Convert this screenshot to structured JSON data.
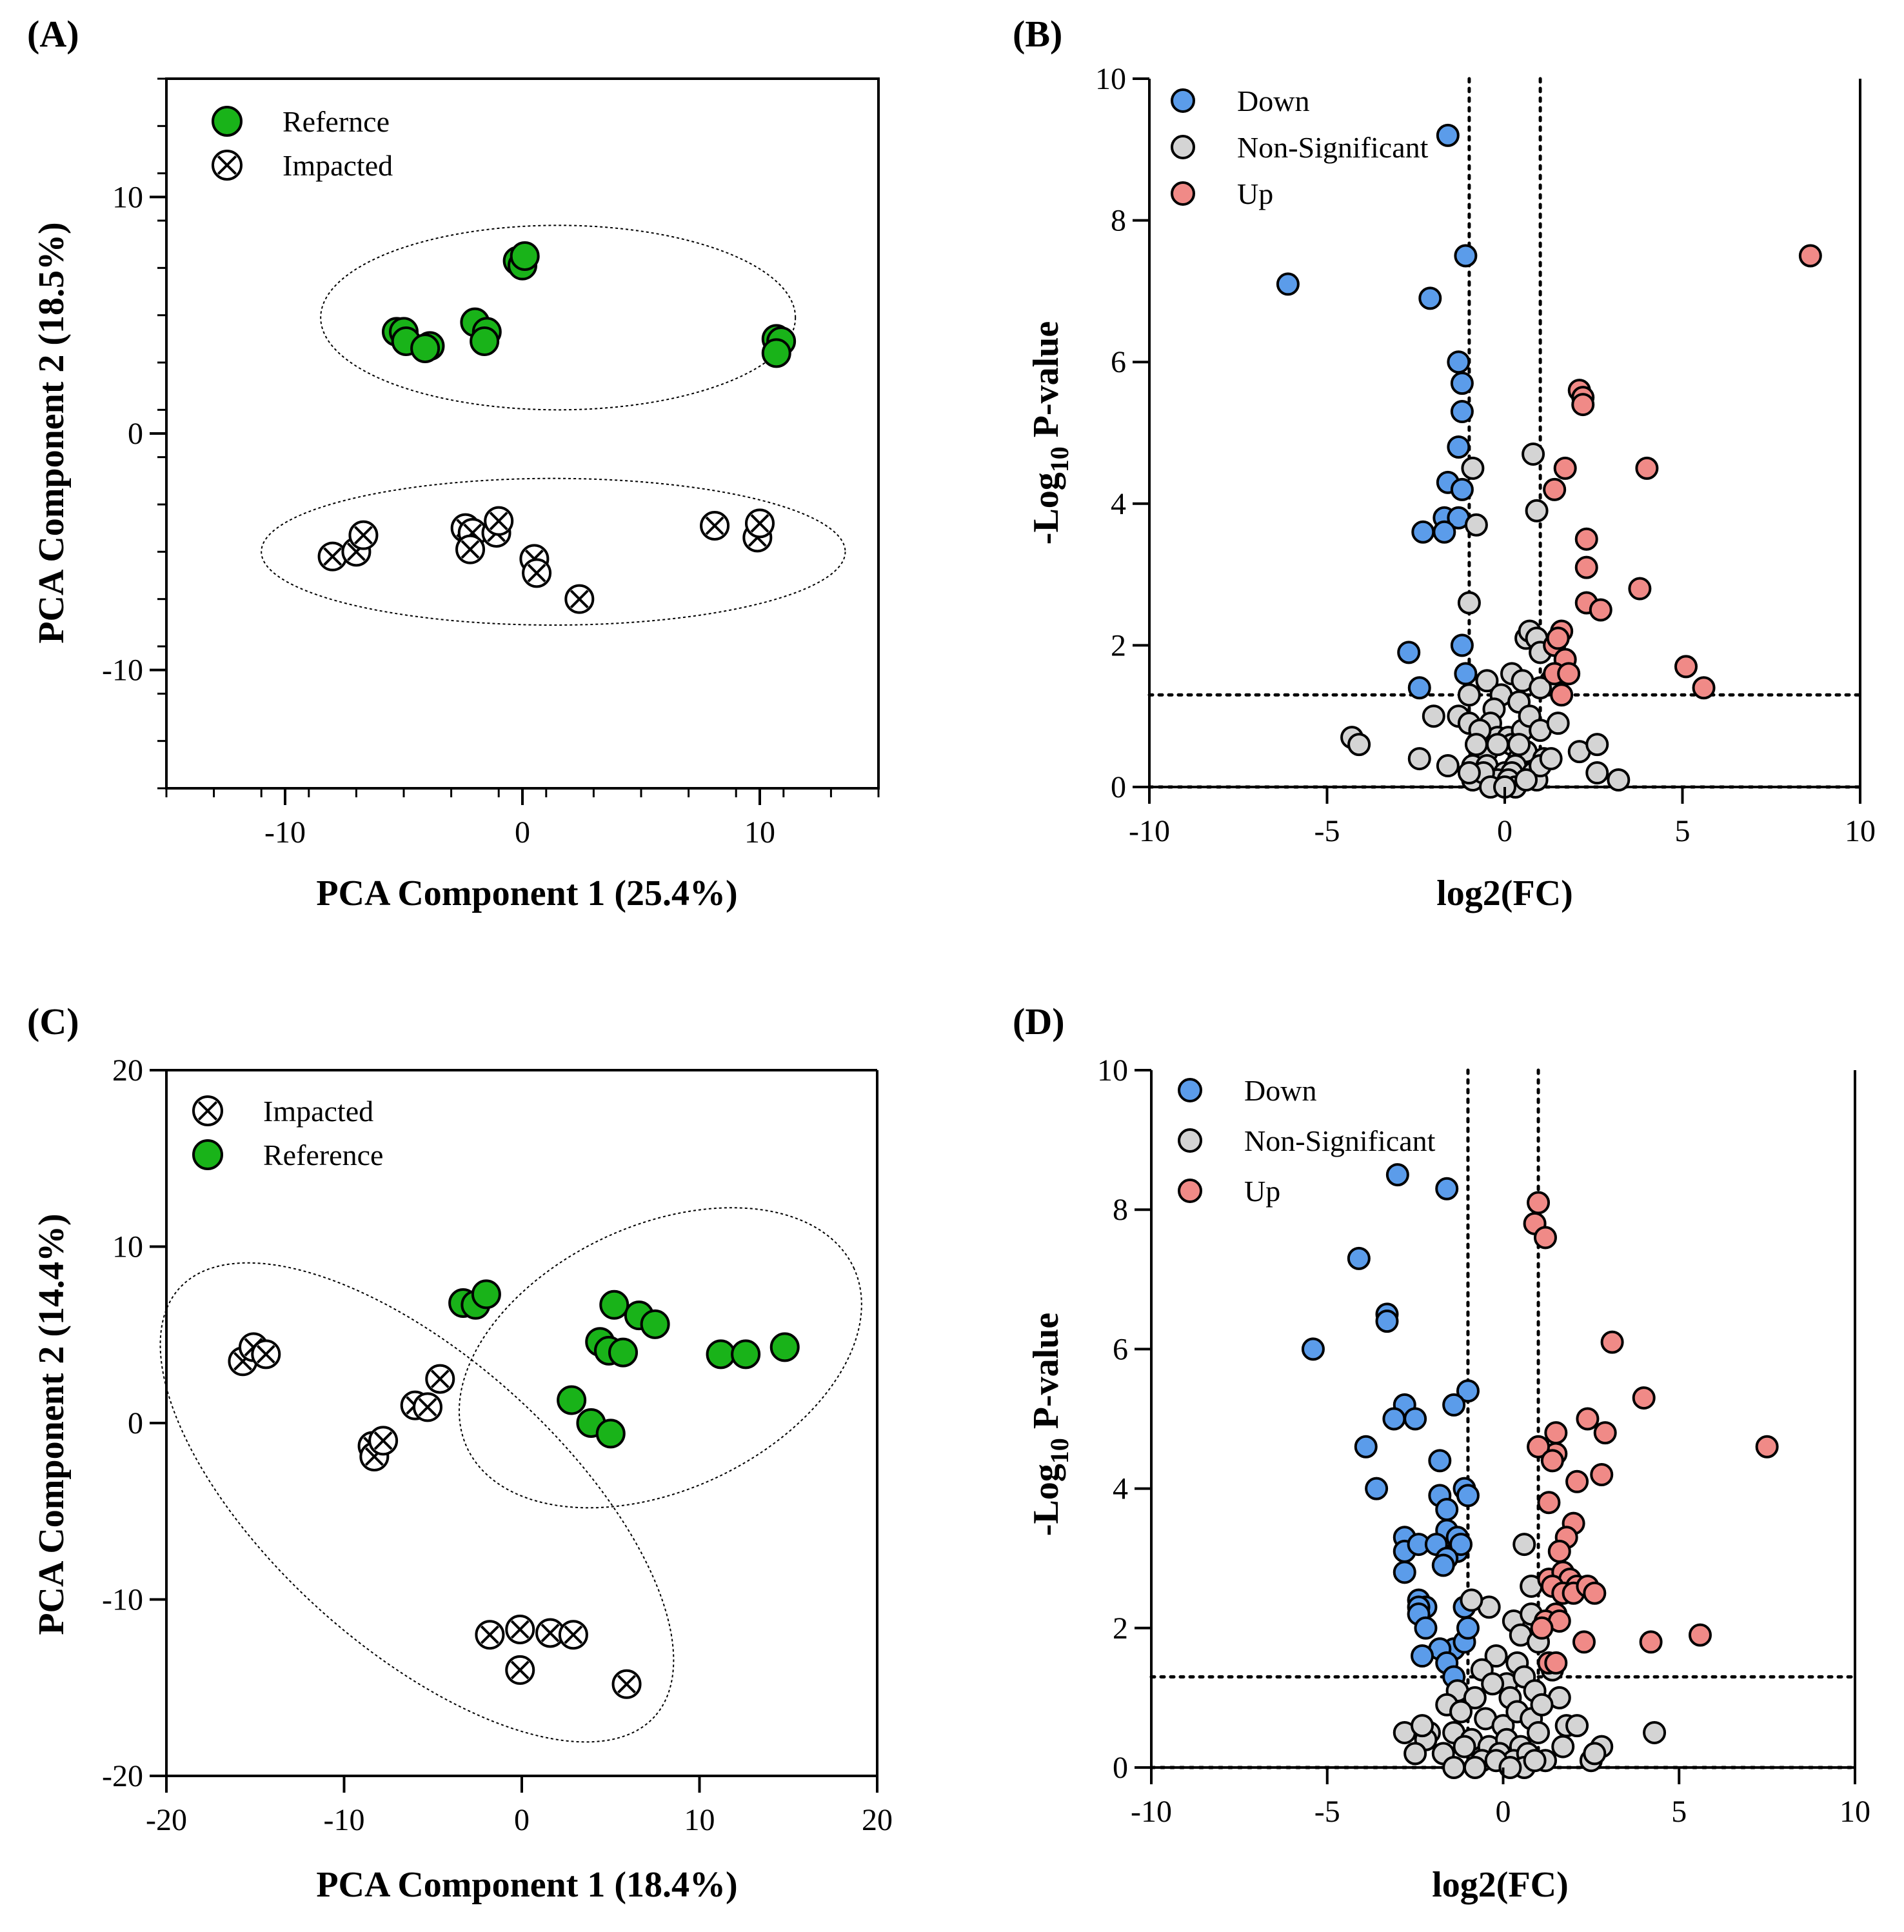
{
  "colors": {
    "reference": "#19b319",
    "down": "#5b9cea",
    "non_significant": "#d4d4d4",
    "up": "#f08a87",
    "stroke": "#000000"
  },
  "chart_data": [
    {
      "panel": "(A)",
      "type": "scatter",
      "xlabel": "PCA Component 1 (25.4%)",
      "ylabel": "PCA Component 2 (18.5%)",
      "xlim": [
        -15,
        15
      ],
      "ylim": [
        -15,
        15
      ],
      "xticks": [
        -10,
        0,
        10
      ],
      "yticks": [
        -10,
        0,
        10
      ],
      "legend_position": "top-left",
      "series": [
        {
          "name": "Refernce",
          "marker": "filled",
          "color": "#19b319",
          "x": [
            -5.3,
            -5.0,
            -4.9,
            -3.9,
            -4.1,
            -2.0,
            -1.5,
            -1.6,
            -0.2,
            0.0,
            0.1,
            10.7,
            10.9,
            10.7
          ],
          "y": [
            4.3,
            4.3,
            3.9,
            3.7,
            3.6,
            4.7,
            4.3,
            3.9,
            7.3,
            7.1,
            7.5,
            4.0,
            3.9,
            3.4
          ]
        },
        {
          "name": "Impacted",
          "marker": "cross",
          "color": "#ffffff",
          "x": [
            -8.0,
            -7.0,
            -6.7,
            -2.4,
            -2.1,
            -2.2,
            -1.1,
            -1.0,
            0.5,
            0.6,
            2.4,
            8.1,
            9.9,
            10.0
          ],
          "y": [
            -5.2,
            -5.0,
            -4.3,
            -4.0,
            -4.2,
            -4.9,
            -4.2,
            -3.7,
            -5.3,
            -5.9,
            -7.0,
            -3.9,
            -4.4,
            -3.8
          ]
        }
      ],
      "ellipses": [
        {
          "group": "Refernce",
          "cx": 1.5,
          "cy": 4.9,
          "rx": 10.0,
          "ry": 3.9
        },
        {
          "group": "Impacted",
          "cx": 1.3,
          "cy": -5.0,
          "rx": 12.3,
          "ry": 3.1
        }
      ]
    },
    {
      "panel": "(B)",
      "type": "scatter",
      "xlabel": "log2(FC)",
      "ylabel_parts": [
        "-Log",
        "10",
        " P-value"
      ],
      "xlim": [
        -10,
        10
      ],
      "ylim": [
        0,
        10
      ],
      "xticks": [
        -10,
        -5,
        0,
        5,
        10
      ],
      "yticks": [
        0,
        2,
        4,
        6,
        8,
        10
      ],
      "thresholds": {
        "x": [
          -1,
          1
        ],
        "y": 1.3
      },
      "legend_position": "top-left",
      "series": [
        {
          "name": "Down",
          "color": "#5b9cea",
          "x": [
            -1.6,
            -6.1,
            -2.1,
            -1.1,
            -1.3,
            -1.2,
            -1.2,
            -1.3,
            -1.6,
            -1.2,
            -1.7,
            -1.3,
            -1.7,
            -2.3,
            -2.7,
            -1.2,
            -2.4,
            -1.1
          ],
          "y": [
            9.2,
            7.1,
            6.9,
            7.5,
            6.0,
            5.7,
            5.3,
            4.8,
            4.3,
            4.2,
            3.8,
            3.8,
            3.6,
            3.6,
            1.9,
            2.0,
            1.4,
            1.6
          ]
        },
        {
          "name": "Non-Significant",
          "color": "#d4d4d4",
          "x": [
            -0.9,
            -0.8,
            0.8,
            0.9,
            -1.0,
            0.6,
            0.7,
            0.9,
            1.0,
            0.2,
            -0.5,
            -0.1,
            0.5,
            1.3,
            -1.0,
            0.4,
            1.0,
            -0.3,
            -1.3,
            -1.0,
            -0.4,
            -0.2,
            -0.7,
            0.1,
            0.5,
            0.7,
            1.0,
            1.5,
            -0.7,
            -0.5,
            0.2,
            0.4,
            0.6,
            1.1,
            -4.3,
            -4.1,
            -1.6,
            -0.9,
            -0.5,
            0.0,
            0.3,
            0.8,
            2.1,
            2.6,
            -2.0,
            -0.9,
            -0.2,
            0.2,
            0.9,
            -2.4,
            -0.6,
            0.1,
            1.0,
            2.6,
            3.2,
            -1.0,
            -0.4,
            0.3,
            0.6,
            1.3,
            -0.2,
            0.0,
            0.4,
            -0.8
          ],
          "y": [
            4.5,
            3.7,
            4.7,
            3.9,
            2.6,
            2.1,
            2.2,
            2.1,
            1.9,
            1.6,
            1.5,
            1.3,
            1.5,
            1.5,
            1.3,
            1.2,
            1.4,
            1.1,
            1.0,
            0.9,
            0.9,
            0.7,
            0.8,
            0.7,
            0.8,
            1.0,
            0.8,
            0.9,
            0.5,
            0.5,
            0.6,
            0.4,
            0.5,
            0.4,
            0.7,
            0.6,
            0.3,
            0.3,
            0.3,
            0.2,
            0.3,
            0.2,
            0.5,
            0.6,
            1.0,
            0.1,
            0.1,
            0.2,
            0.1,
            0.4,
            0.2,
            0.1,
            0.3,
            0.2,
            0.1,
            0.2,
            0.0,
            0.0,
            0.1,
            0.4,
            0.6,
            0.0,
            0.6,
            0.6
          ]
        },
        {
          "name": "Up",
          "color": "#f08a87",
          "x": [
            8.6,
            2.1,
            2.2,
            2.2,
            1.7,
            4.0,
            1.4,
            2.3,
            2.3,
            3.8,
            2.3,
            2.7,
            1.6,
            1.4,
            1.5,
            1.7,
            5.1,
            1.4,
            1.8,
            5.6,
            1.6
          ],
          "y": [
            7.5,
            5.6,
            5.5,
            5.4,
            4.5,
            4.5,
            4.2,
            3.5,
            3.1,
            2.8,
            2.6,
            2.5,
            2.2,
            2.0,
            2.1,
            1.8,
            1.7,
            1.6,
            1.6,
            1.4,
            1.3
          ]
        }
      ]
    },
    {
      "panel": "(C)",
      "type": "scatter",
      "xlabel": "PCA Component 1 (18.4%)",
      "ylabel": "PCA Component 2 (14.4%)",
      "xlim": [
        -20,
        20
      ],
      "ylim": [
        -20,
        20
      ],
      "xticks": [
        -20,
        -10,
        0,
        10,
        20
      ],
      "yticks": [
        -20,
        -10,
        0,
        10,
        20
      ],
      "legend_position": "top-left",
      "series": [
        {
          "name": "Impacted",
          "marker": "cross",
          "color": "#ffffff",
          "x": [
            -15.7,
            -15.1,
            -14.4,
            -8.4,
            -8.3,
            -7.8,
            -6.0,
            -5.3,
            -4.6,
            -1.8,
            -0.1,
            1.6,
            2.9,
            -0.1,
            5.9
          ],
          "y": [
            3.5,
            4.3,
            3.9,
            -1.3,
            -1.9,
            -1.0,
            1.0,
            0.9,
            2.5,
            -12.0,
            -11.7,
            -11.9,
            -12.0,
            -14.0,
            -14.8
          ]
        },
        {
          "name": "Reference",
          "marker": "filled",
          "color": "#19b319",
          "x": [
            -3.3,
            -2.6,
            -2.0,
            5.2,
            6.6,
            7.5,
            4.4,
            4.9,
            5.7,
            11.2,
            12.6,
            14.8,
            2.8,
            3.9,
            5.0
          ],
          "y": [
            6.8,
            6.7,
            7.3,
            6.7,
            6.1,
            5.6,
            4.6,
            4.1,
            4.0,
            3.9,
            3.9,
            4.3,
            1.3,
            0.0,
            -0.6
          ]
        }
      ],
      "ellipses": [
        {
          "group": "Reference",
          "cx": 7.8,
          "cy": 3.7,
          "rx": 12.0,
          "ry": 7.5,
          "rotation_deg": -25
        },
        {
          "group": "Impacted",
          "cx": -5.9,
          "cy": -4.5,
          "rx": 18.0,
          "ry": 8.2,
          "rotation_deg": 42
        }
      ]
    },
    {
      "panel": "(D)",
      "type": "scatter",
      "xlabel": "log2(FC)",
      "ylabel_parts": [
        "-Log",
        "10",
        " P-value"
      ],
      "xlim": [
        -10,
        10
      ],
      "ylim": [
        0,
        10
      ],
      "xticks": [
        -10,
        -5,
        0,
        5,
        10
      ],
      "yticks": [
        0,
        2,
        4,
        6,
        8,
        10
      ],
      "thresholds": {
        "x": [
          -1,
          1
        ],
        "y": 1.3
      },
      "legend_position": "top-left",
      "series": [
        {
          "name": "Down",
          "color": "#5b9cea",
          "x": [
            -3.0,
            -1.6,
            -4.1,
            -3.3,
            -3.3,
            -5.4,
            -1.0,
            -2.8,
            -1.4,
            -3.1,
            -2.5,
            -1.8,
            -3.9,
            -1.1,
            -1.0,
            -3.6,
            -1.8,
            -1.6,
            -2.8,
            -1.6,
            -1.3,
            -2.8,
            -2.4,
            -1.9,
            -1.3,
            -1.2,
            -2.8,
            -1.6,
            -1.7,
            -2.4,
            -2.2,
            -1.1,
            -2.4,
            -2.4,
            -2.2,
            -1.4,
            -1.1,
            -1.0,
            -1.8,
            -1.6,
            -2.3,
            -1.4
          ],
          "y": [
            8.5,
            8.3,
            7.3,
            6.5,
            6.4,
            6.0,
            5.4,
            5.2,
            5.2,
            5.0,
            5.0,
            4.4,
            4.6,
            4.0,
            3.9,
            4.0,
            3.9,
            3.7,
            3.3,
            3.4,
            3.3,
            3.1,
            3.2,
            3.2,
            3.1,
            3.2,
            2.8,
            3.0,
            2.9,
            2.4,
            2.3,
            2.3,
            2.3,
            2.2,
            2.0,
            1.7,
            1.8,
            2.0,
            1.7,
            1.5,
            1.6,
            1.3
          ]
        },
        {
          "name": "Non-Significant",
          "color": "#d4d4d4",
          "x": [
            0.6,
            0.8,
            -0.4,
            0.3,
            0.5,
            0.8,
            -0.9,
            -0.2,
            0.4,
            1.0,
            -0.6,
            0.1,
            0.6,
            1.4,
            -1.3,
            -0.8,
            -0.3,
            0.2,
            0.9,
            1.6,
            -2.1,
            -1.6,
            -1.2,
            -0.5,
            0.0,
            0.4,
            0.8,
            1.1,
            1.8,
            -2.8,
            -2.2,
            -1.4,
            -0.9,
            -0.4,
            0.1,
            0.5,
            1.0,
            2.1,
            2.5,
            2.8,
            4.3,
            -2.5,
            -1.7,
            -1.1,
            -0.6,
            -0.1,
            0.3,
            0.7,
            1.2,
            1.7,
            2.6,
            -2.3,
            -1.4,
            -0.8,
            -0.2,
            0.6,
            0.9,
            0.2
          ],
          "y": [
            3.2,
            2.6,
            2.3,
            2.1,
            1.9,
            2.2,
            2.4,
            1.6,
            1.5,
            1.8,
            1.4,
            1.2,
            1.3,
            1.4,
            1.1,
            1.0,
            1.2,
            1.0,
            1.1,
            1.0,
            0.5,
            0.9,
            0.8,
            0.7,
            0.6,
            0.8,
            0.7,
            0.9,
            0.6,
            0.5,
            0.4,
            0.5,
            0.4,
            0.3,
            0.4,
            0.3,
            0.5,
            0.6,
            0.1,
            0.3,
            0.5,
            0.2,
            0.2,
            0.3,
            0.1,
            0.2,
            0.1,
            0.2,
            0.1,
            0.3,
            0.2,
            0.6,
            0.0,
            0.0,
            0.1,
            0.0,
            0.1,
            0.0
          ]
        },
        {
          "name": "Up",
          "color": "#f08a87",
          "x": [
            1.0,
            0.9,
            1.2,
            3.1,
            4.0,
            1.5,
            2.4,
            2.9,
            1.5,
            7.5,
            1.0,
            1.4,
            2.1,
            2.8,
            1.3,
            2.0,
            1.8,
            1.6,
            1.3,
            1.7,
            1.9,
            2.1,
            1.4,
            1.7,
            2.0,
            2.4,
            2.6,
            1.5,
            1.2,
            1.6,
            1.1,
            2.3,
            4.2,
            5.6,
            1.3,
            1.5
          ],
          "y": [
            8.1,
            7.8,
            7.6,
            6.1,
            5.3,
            4.8,
            5.0,
            4.8,
            4.5,
            4.6,
            4.6,
            4.4,
            4.1,
            4.2,
            3.8,
            3.5,
            3.3,
            3.1,
            2.7,
            2.8,
            2.7,
            2.6,
            2.6,
            2.5,
            2.5,
            2.6,
            2.5,
            2.2,
            2.1,
            2.1,
            2.0,
            1.8,
            1.8,
            1.9,
            1.5,
            1.5
          ]
        }
      ]
    }
  ]
}
